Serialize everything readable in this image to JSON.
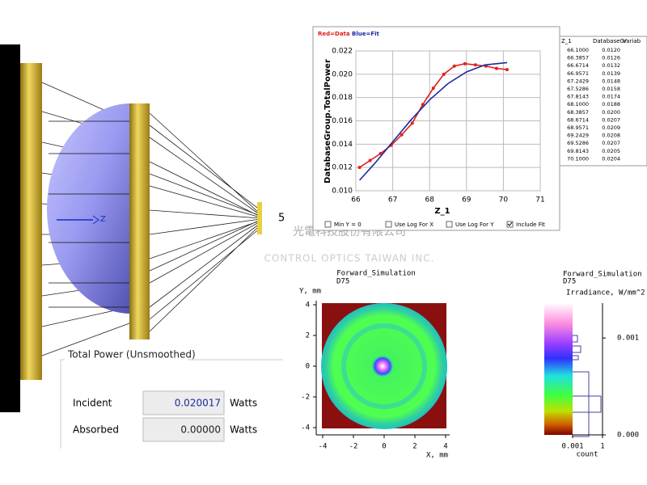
{
  "raytrace": {
    "axis_label": "Z",
    "image_label": "5"
  },
  "watermark": {
    "company_cn": "光電科技股份有限公司",
    "company_en": "CONTROL OPTICS TAIWAN INC."
  },
  "power_panel": {
    "title": "Total Power (Unsmoothed)",
    "rows": [
      {
        "label": "Incident",
        "value": "0.020017",
        "unit": "Watts"
      },
      {
        "label": "Absorbed",
        "value": "0.00000",
        "unit": "Watts"
      }
    ]
  },
  "checkboxes": [
    {
      "label": "Min Y = 0",
      "checked": false
    },
    {
      "label": "Use Log For X",
      "checked": false
    },
    {
      "label": "Use Log For Y",
      "checked": false
    },
    {
      "label": "Include  Fit",
      "checked": true
    }
  ],
  "table": {
    "columns": [
      "Z_1",
      "DatabaseGr",
      "Variab"
    ],
    "rows": [
      [
        "66.1000",
        "0.0120"
      ],
      [
        "66.3857",
        "0.0126"
      ],
      [
        "66.6714",
        "0.0132"
      ],
      [
        "66.9571",
        "0.0139"
      ],
      [
        "67.2429",
        "0.0148"
      ],
      [
        "67.5286",
        "0.0158"
      ],
      [
        "67.8143",
        "0.0174"
      ],
      [
        "68.1000",
        "0.0188"
      ],
      [
        "68.3857",
        "0.0200"
      ],
      [
        "68.6714",
        "0.0207"
      ],
      [
        "68.9571",
        "0.0209"
      ],
      [
        "69.2429",
        "0.0208"
      ],
      [
        "69.5286",
        "0.0207"
      ],
      [
        "69.8143",
        "0.0205"
      ],
      [
        "70.1000",
        "0.0204"
      ]
    ]
  },
  "chart_data": [
    {
      "type": "line",
      "xlabel": "Z_1",
      "ylabel": "DatabaseGroup.TotalPower",
      "xlim": [
        66,
        71
      ],
      "ylim": [
        0.01,
        0.022
      ],
      "xticks": [
        66,
        67,
        68,
        69,
        70,
        71
      ],
      "yticks": [
        {
          "value": 0.01,
          "label": "0.010"
        },
        {
          "value": 0.012,
          "label": "0.012"
        },
        {
          "value": 0.014,
          "label": "0.014"
        },
        {
          "value": 0.016,
          "label": "0.016"
        },
        {
          "value": 0.018,
          "label": "0.018"
        },
        {
          "value": 0.02,
          "label": "0.020"
        },
        {
          "value": 0.022,
          "label": "0.022"
        }
      ],
      "grid": true,
      "series": [
        {
          "name": "Red=Data",
          "color": "#e0201c",
          "markers": true,
          "x": [
            66.1,
            66.3857,
            66.6714,
            66.9571,
            67.2429,
            67.5286,
            67.8143,
            68.1,
            68.3857,
            68.6714,
            68.9571,
            69.2429,
            69.5286,
            69.8143,
            70.1
          ],
          "values": [
            0.012,
            0.0126,
            0.0132,
            0.0139,
            0.0148,
            0.0158,
            0.0174,
            0.0188,
            0.02,
            0.0207,
            0.0209,
            0.0208,
            0.0207,
            0.0205,
            0.0204
          ]
        },
        {
          "name": "Blue=Fit",
          "color": "#1c2aa0",
          "markers": false,
          "x": [
            66.1,
            66.5,
            67,
            67.5,
            68,
            68.5,
            69,
            69.5,
            70.1
          ],
          "values": [
            0.0109,
            0.0123,
            0.0142,
            0.0161,
            0.0178,
            0.0192,
            0.0202,
            0.0208,
            0.021
          ]
        }
      ]
    },
    {
      "type": "heatmap",
      "title": "Forward_Simulation",
      "subtitle": "D75",
      "xlabel": "X, mm",
      "ylabel": "Y, mm",
      "xlim": [
        -4,
        4
      ],
      "ylim": [
        -4,
        4
      ],
      "xticks": [
        -4,
        -2,
        0,
        2,
        4
      ],
      "yticks": [
        -4,
        -2,
        0,
        2,
        4
      ]
    },
    {
      "type": "colorbar",
      "title": "Forward_Simulation",
      "subtitle": "D75",
      "ylabel": "Irradiance, W/mm^2",
      "xlabel": "count",
      "xscale": "log",
      "xlim": [
        0.001,
        1
      ],
      "xticks": [
        0.001,
        1
      ],
      "ylim": [
        0,
        0.00136
      ],
      "yticks": [
        {
          "value": 0,
          "label": "0.000"
        },
        {
          "value": 0.001,
          "label": "0.001"
        }
      ]
    }
  ]
}
